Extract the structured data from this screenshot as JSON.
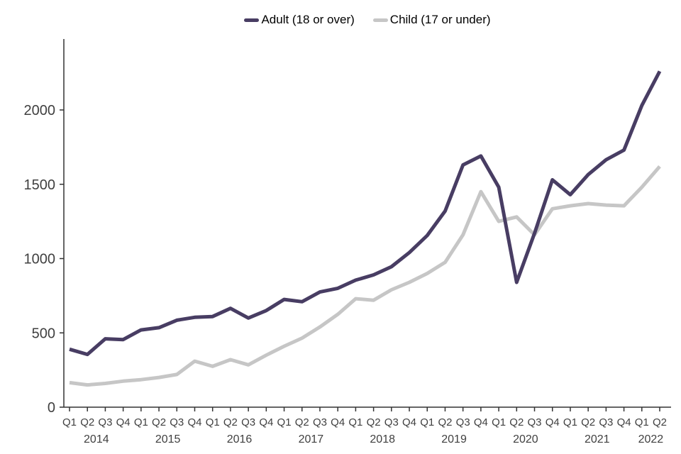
{
  "chart_data": {
    "type": "line",
    "title": "",
    "grid": "off",
    "legend_position": "top",
    "x_quarter_labels": [
      "Q1",
      "Q2",
      "Q3",
      "Q4",
      "Q1",
      "Q2",
      "Q3",
      "Q4",
      "Q1",
      "Q2",
      "Q3",
      "Q4",
      "Q1",
      "Q2",
      "Q3",
      "Q4",
      "Q1",
      "Q2",
      "Q3",
      "Q4",
      "Q1",
      "Q2",
      "Q3",
      "Q4",
      "Q1",
      "Q2",
      "Q3",
      "Q4",
      "Q1",
      "Q2",
      "Q3",
      "Q4",
      "Q1",
      "Q2"
    ],
    "x_year_labels": [
      {
        "label": "2014",
        "center_index": 1.5
      },
      {
        "label": "2015",
        "center_index": 5.5
      },
      {
        "label": "2016",
        "center_index": 9.5
      },
      {
        "label": "2017",
        "center_index": 13.5
      },
      {
        "label": "2018",
        "center_index": 17.5
      },
      {
        "label": "2019",
        "center_index": 21.5
      },
      {
        "label": "2020",
        "center_index": 25.5
      },
      {
        "label": "2021",
        "center_index": 29.5
      },
      {
        "label": "2022",
        "center_index": 32.5
      }
    ],
    "y_ticks": [
      0,
      500,
      1000,
      1500,
      2000
    ],
    "ylim": [
      0,
      2475
    ],
    "series": [
      {
        "name": "Adult (18 or over)",
        "color": "#483D63",
        "values": [
          390,
          355,
          460,
          455,
          520,
          535,
          585,
          605,
          610,
          665,
          600,
          650,
          725,
          710,
          775,
          800,
          855,
          890,
          945,
          1040,
          1155,
          1320,
          1630,
          1690,
          1480,
          840,
          1170,
          1530,
          1430,
          1565,
          1665,
          1730,
          2030,
          2260
        ]
      },
      {
        "name": "Child (17 or under)",
        "color": "#C6C6C6",
        "values": [
          165,
          150,
          160,
          175,
          185,
          200,
          220,
          310,
          275,
          320,
          285,
          350,
          410,
          465,
          540,
          625,
          730,
          720,
          790,
          840,
          900,
          975,
          1160,
          1450,
          1250,
          1280,
          1160,
          1335,
          1355,
          1370,
          1360,
          1355,
          1480,
          1620
        ]
      }
    ]
  },
  "colors": {
    "axis": "#333333",
    "tick_text": "#404040",
    "legend_text": "#000000"
  }
}
